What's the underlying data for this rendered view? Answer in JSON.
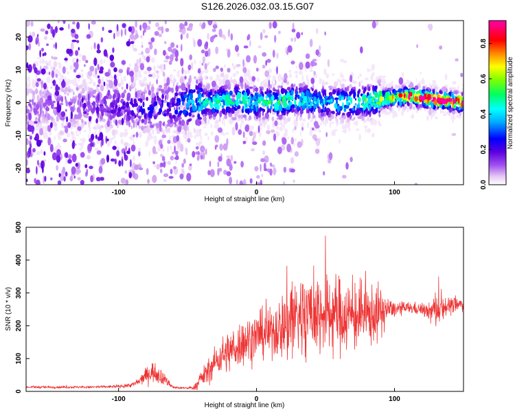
{
  "title": "S126.2026.032.03.15.G07",
  "chart_data": [
    {
      "type": "heatmap",
      "title": "S126.2026.032.03.15.G07",
      "xlabel": "Height of straight line (km)",
      "ylabel": "Frequency (Hz)",
      "xlim": [
        -167,
        150
      ],
      "ylim": [
        -25,
        25
      ],
      "xticks": [
        -100,
        0,
        100
      ],
      "yticks": [
        -20,
        -10,
        0,
        10,
        20
      ],
      "grid": false,
      "colorbar": {
        "label": "Normalized spectral amplitude",
        "range": [
          0.0,
          0.93
        ],
        "ticks": [
          "0.0",
          "0.2",
          "0.4",
          "0.6",
          "0.8"
        ],
        "colormap": "rainbow"
      },
      "ridge": {
        "x": [
          -167,
          -120,
          -100,
          -80,
          -60,
          -45,
          -30,
          -15,
          0,
          15,
          30,
          50,
          70,
          90,
          110,
          130,
          150
        ],
        "center_hz": [
          -1,
          -1,
          -1,
          -2,
          -1,
          0,
          0,
          1,
          0,
          0,
          1,
          0,
          0,
          1,
          2,
          1,
          0
        ],
        "peak_amplitude": [
          0.1,
          0.12,
          0.18,
          0.22,
          0.25,
          0.4,
          0.45,
          0.5,
          0.45,
          0.5,
          0.45,
          0.4,
          0.45,
          0.6,
          0.85,
          0.9,
          0.85
        ]
      }
    },
    {
      "type": "line",
      "xlabel": "Height of straight line (km)",
      "ylabel": "SNR (10 * v/v)",
      "xlim": [
        -167,
        150
      ],
      "ylim": [
        0,
        500
      ],
      "xticks": [
        -100,
        0,
        100
      ],
      "yticks": [
        0,
        100,
        200,
        300,
        400,
        500
      ],
      "grid": false,
      "series": [
        {
          "name": "SNR",
          "color": "#ee3333",
          "envelope_x": [
            -167,
            -120,
            -100,
            -90,
            -85,
            -80,
            -75,
            -70,
            -65,
            -60,
            -50,
            -45,
            -40,
            -35,
            -30,
            -25,
            -20,
            -10,
            0,
            10,
            20,
            25,
            30,
            40,
            50,
            60,
            70,
            80,
            90,
            95,
            100,
            110,
            120,
            125,
            130,
            135,
            140,
            150
          ],
          "mean": [
            13,
            13,
            15,
            20,
            30,
            50,
            60,
            50,
            30,
            12,
            10,
            12,
            40,
            60,
            90,
            110,
            120,
            150,
            170,
            180,
            200,
            230,
            230,
            240,
            235,
            235,
            230,
            230,
            240,
            250,
            250,
            255,
            250,
            240,
            250,
            260,
            260,
            265
          ],
          "spread": [
            4,
            4,
            5,
            8,
            15,
            25,
            35,
            30,
            15,
            5,
            3,
            8,
            30,
            40,
            50,
            60,
            70,
            80,
            80,
            80,
            120,
            200,
            150,
            150,
            140,
            130,
            120,
            110,
            90,
            40,
            25,
            20,
            20,
            30,
            70,
            40,
            30,
            25
          ]
        }
      ]
    }
  ]
}
